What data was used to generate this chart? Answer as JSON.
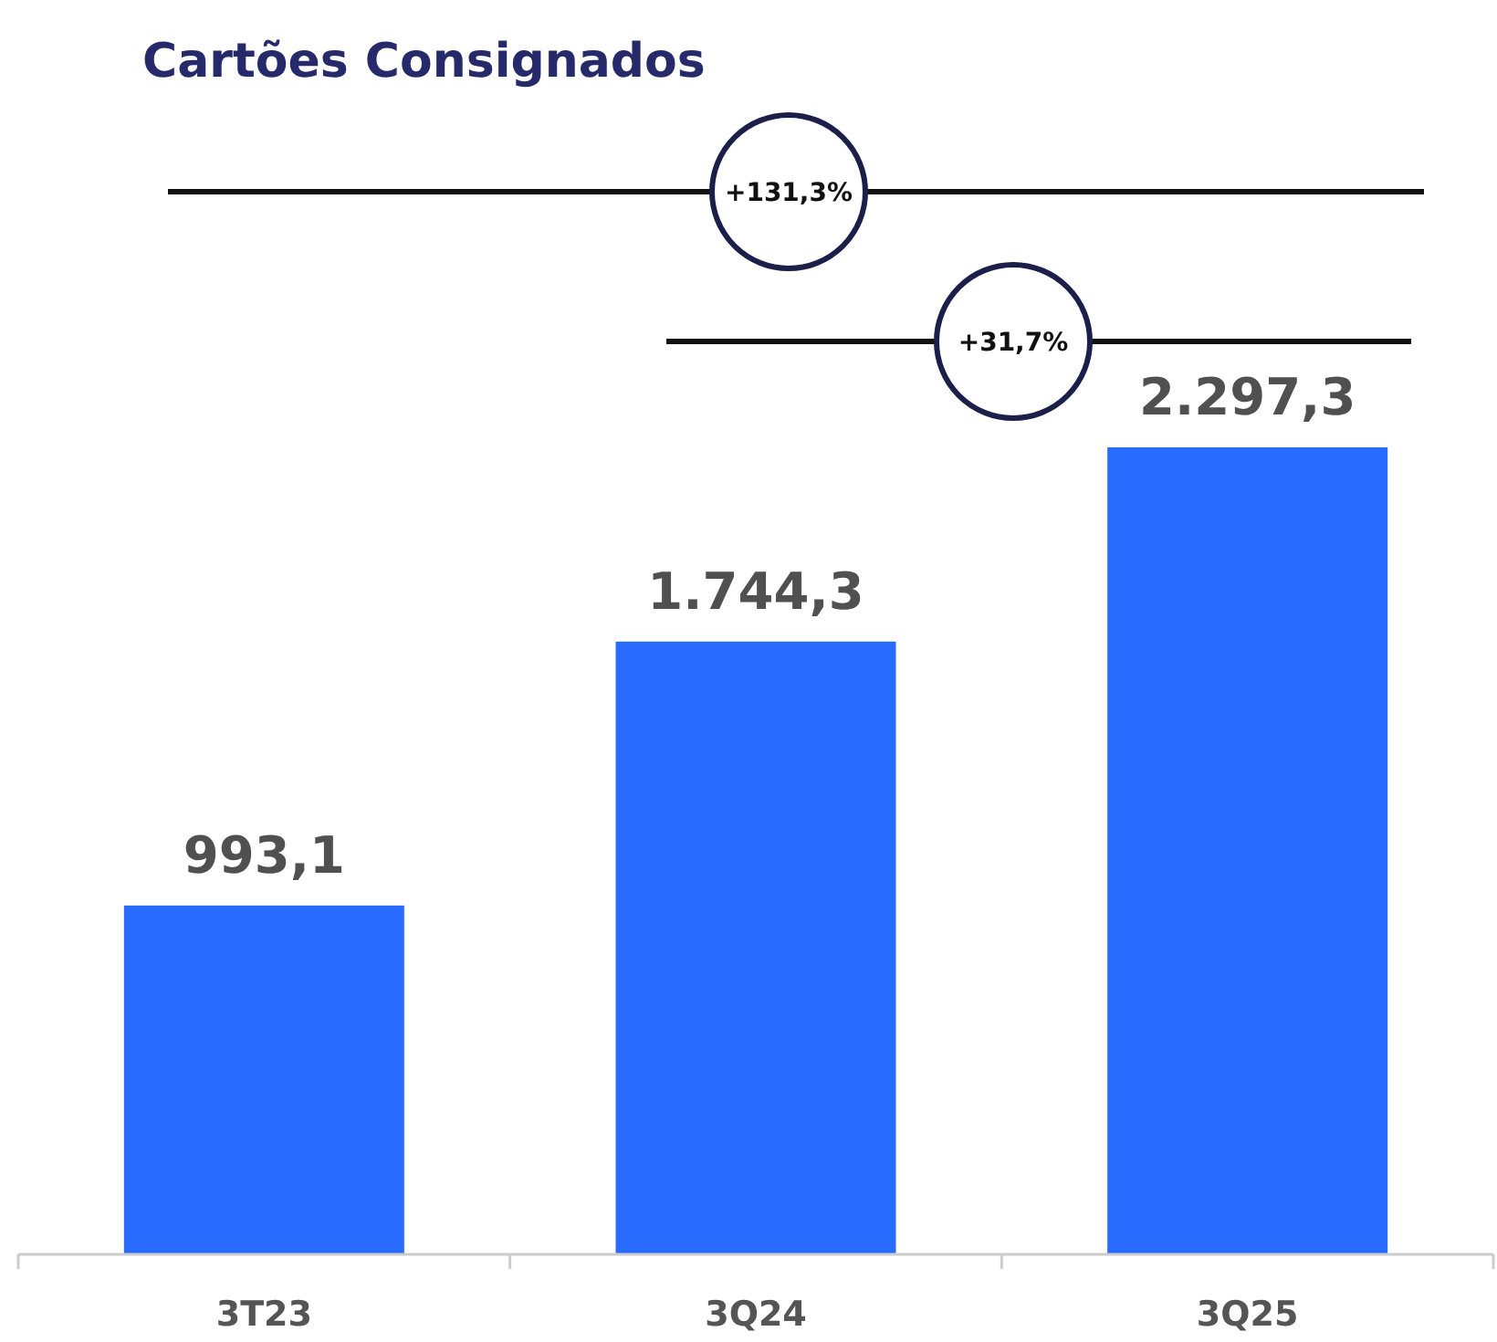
{
  "chart_data": {
    "type": "bar",
    "title": "Cartões Consignados",
    "categories": [
      "3T23",
      "3Q24",
      "3Q25"
    ],
    "values": [
      993.1,
      1744.3,
      2297.3
    ],
    "value_labels": [
      "993,1",
      "1.744,3",
      "2.297,3"
    ],
    "color": "#2a6bff",
    "annotations": [
      "+131,3%",
      "+31,7%"
    ]
  }
}
